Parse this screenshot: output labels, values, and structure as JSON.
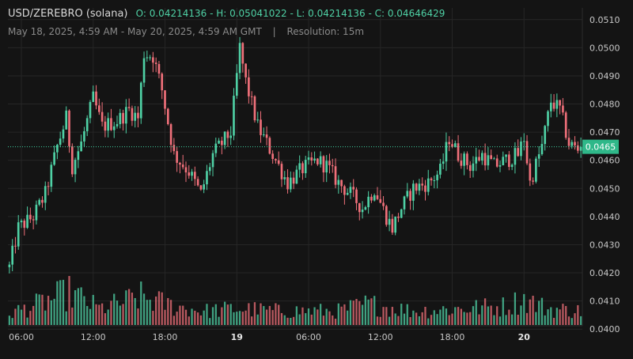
{
  "header": {
    "pair": "USD/ZEREBRO (solana)",
    "ohlc_text": "O: 0.04214136 - H: 0.05041022 - L: 0.04214136 - C: 0.04646429",
    "range_text": "May 18, 2025, 4:59 AM - May 20, 2025, 4:59 AM GMT",
    "separator": "|",
    "resolution_text": "Resolution: 15m"
  },
  "colors": {
    "background": "#141414",
    "grid": "#262626",
    "up": "#4fd1a5",
    "down": "#f0707a",
    "price_line": "#3fd0a0",
    "price_label_bg": "#2fb889",
    "axis_text": "#c8c8c8"
  },
  "watermark_icon": "dexscreener-logo-icon",
  "chart_data": {
    "type": "candlestick",
    "interval": "15m",
    "title": "USD/ZEREBRO (solana)",
    "summary": {
      "open": 0.04214136,
      "high": 0.05041022,
      "low": 0.04214136,
      "close": 0.04646429
    },
    "current_price_label": "0.0465",
    "current_price": 0.04648,
    "ylim": [
      0.0395,
      0.0515
    ],
    "y_ticks": [
      "0.0510",
      "0.0500",
      "0.0490",
      "0.0480",
      "0.0470",
      "0.0460",
      "0.0450",
      "0.0440",
      "0.0430",
      "0.0420",
      "0.0410",
      "0.0400"
    ],
    "x_ticks": [
      {
        "label": "06:00",
        "index": 4,
        "bold": false
      },
      {
        "label": "12:00",
        "index": 28,
        "bold": false
      },
      {
        "label": "18:00",
        "index": 52,
        "bold": false
      },
      {
        "label": "19",
        "index": 76,
        "bold": true
      },
      {
        "label": "06:00",
        "index": 100,
        "bold": false
      },
      {
        "label": "12:00",
        "index": 124,
        "bold": false
      },
      {
        "label": "18:00",
        "index": 148,
        "bold": false
      },
      {
        "label": "20",
        "index": 172,
        "bold": true
      }
    ],
    "grid": true,
    "price_keypoints": [
      [
        0,
        0.0422
      ],
      [
        3,
        0.0436
      ],
      [
        8,
        0.044
      ],
      [
        12,
        0.0448
      ],
      [
        16,
        0.0465
      ],
      [
        19,
        0.0475
      ],
      [
        21,
        0.0458
      ],
      [
        24,
        0.0466
      ],
      [
        28,
        0.0482
      ],
      [
        31,
        0.0472
      ],
      [
        36,
        0.0474
      ],
      [
        40,
        0.0478
      ],
      [
        43,
        0.0475
      ],
      [
        45,
        0.0498
      ],
      [
        48,
        0.0497
      ],
      [
        51,
        0.0485
      ],
      [
        55,
        0.0462
      ],
      [
        60,
        0.0456
      ],
      [
        64,
        0.0448
      ],
      [
        68,
        0.0462
      ],
      [
        71,
        0.0466
      ],
      [
        74,
        0.047
      ],
      [
        77,
        0.05
      ],
      [
        79,
        0.0488
      ],
      [
        83,
        0.0472
      ],
      [
        88,
        0.0462
      ],
      [
        93,
        0.0452
      ],
      [
        98,
        0.0457
      ],
      [
        103,
        0.046
      ],
      [
        106,
        0.0458
      ],
      [
        110,
        0.0452
      ],
      [
        114,
        0.0448
      ],
      [
        118,
        0.0443
      ],
      [
        122,
        0.045
      ],
      [
        126,
        0.044
      ],
      [
        128,
        0.0436
      ],
      [
        131,
        0.0443
      ],
      [
        135,
        0.045
      ],
      [
        140,
        0.0452
      ],
      [
        144,
        0.0456
      ],
      [
        147,
        0.0468
      ],
      [
        150,
        0.0462
      ],
      [
        154,
        0.0458
      ],
      [
        158,
        0.0462
      ],
      [
        162,
        0.0458
      ],
      [
        166,
        0.046
      ],
      [
        170,
        0.0462
      ],
      [
        172,
        0.0468
      ],
      [
        174,
        0.0452
      ],
      [
        178,
        0.0465
      ],
      [
        181,
        0.0481
      ],
      [
        184,
        0.0478
      ],
      [
        187,
        0.0466
      ],
      [
        191,
        0.0463
      ]
    ],
    "candle_count": 192,
    "volume_ylim": [
      0,
      1
    ],
    "volume_keypoints": [
      [
        0,
        0.25
      ],
      [
        10,
        0.45
      ],
      [
        20,
        0.7
      ],
      [
        30,
        0.35
      ],
      [
        44,
        0.6
      ],
      [
        55,
        0.4
      ],
      [
        65,
        0.3
      ],
      [
        76,
        0.35
      ],
      [
        90,
        0.3
      ],
      [
        110,
        0.3
      ],
      [
        120,
        0.45
      ],
      [
        135,
        0.3
      ],
      [
        150,
        0.35
      ],
      [
        165,
        0.4
      ],
      [
        172,
        0.55
      ],
      [
        180,
        0.35
      ],
      [
        191,
        0.3
      ]
    ]
  }
}
